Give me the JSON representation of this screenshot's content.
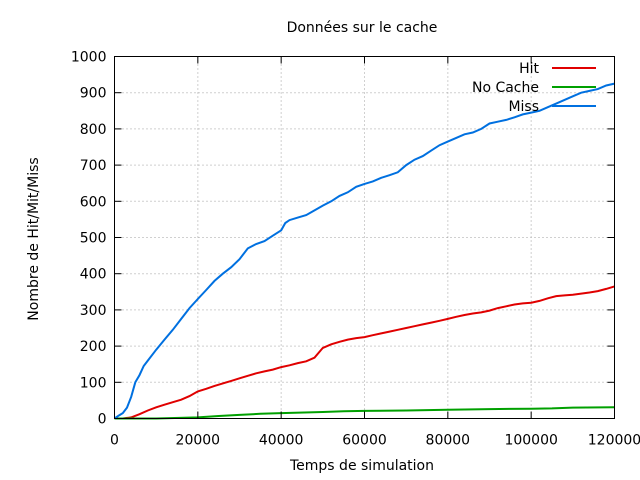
{
  "chart_data": {
    "type": "line",
    "title": "Données sur le cache",
    "xlabel": "Temps de simulation",
    "ylabel": "Nombre de Hit/Mit/Miss",
    "xlim": [
      0,
      120000
    ],
    "ylim": [
      0,
      1000
    ],
    "xticks": [
      0,
      20000,
      40000,
      60000,
      80000,
      100000,
      120000
    ],
    "yticks": [
      0,
      100,
      200,
      300,
      400,
      500,
      600,
      700,
      800,
      900,
      1000
    ],
    "grid": true,
    "legend_position": "top-right",
    "series": [
      {
        "name": "Hit",
        "color": "#e00000",
        "x": [
          0,
          2000,
          4000,
          6000,
          8000,
          10000,
          12000,
          14000,
          16000,
          18000,
          20000,
          22000,
          24000,
          26000,
          28000,
          30000,
          32000,
          34000,
          36000,
          38000,
          40000,
          42000,
          44000,
          46000,
          48000,
          50000,
          52000,
          54000,
          56000,
          58000,
          60000,
          62000,
          64000,
          66000,
          68000,
          70000,
          72000,
          74000,
          76000,
          78000,
          80000,
          82000,
          84000,
          86000,
          88000,
          90000,
          92000,
          94000,
          96000,
          98000,
          100000,
          102000,
          104000,
          106000,
          108000,
          110000,
          112000,
          114000,
          116000,
          118000,
          120000
        ],
        "y": [
          0,
          0,
          3,
          12,
          22,
          31,
          38,
          45,
          52,
          62,
          75,
          82,
          90,
          97,
          104,
          111,
          118,
          125,
          130,
          135,
          142,
          147,
          153,
          158,
          168,
          195,
          205,
          212,
          218,
          222,
          225,
          230,
          235,
          240,
          245,
          250,
          255,
          260,
          265,
          270,
          275,
          281,
          286,
          290,
          293,
          298,
          305,
          310,
          315,
          318,
          320,
          325,
          332,
          338,
          340,
          342,
          345,
          348,
          352,
          358,
          365
        ]
      },
      {
        "name": "No Cache",
        "color": "#00a000",
        "x": [
          0,
          10000,
          20000,
          25000,
          30000,
          35000,
          40000,
          50000,
          55000,
          60000,
          70000,
          80000,
          90000,
          100000,
          105000,
          110000,
          120000
        ],
        "y": [
          0,
          0,
          3,
          7,
          10,
          13,
          15,
          18,
          20,
          21,
          22,
          24,
          26,
          27,
          28,
          30,
          31
        ]
      },
      {
        "name": "Miss",
        "color": "#0070e0",
        "x": [
          0,
          1000,
          2000,
          3000,
          4000,
          5000,
          6000,
          7000,
          8000,
          10000,
          12000,
          14000,
          16000,
          18000,
          20000,
          22000,
          24000,
          26000,
          28000,
          30000,
          32000,
          34000,
          36000,
          38000,
          40000,
          41000,
          42000,
          44000,
          46000,
          48000,
          50000,
          52000,
          54000,
          56000,
          58000,
          60000,
          62000,
          64000,
          66000,
          68000,
          70000,
          72000,
          74000,
          76000,
          78000,
          80000,
          82000,
          84000,
          86000,
          88000,
          90000,
          92000,
          94000,
          96000,
          98000,
          100000,
          102000,
          104000,
          106000,
          108000,
          110000,
          112000,
          114000,
          116000,
          118000,
          120000
        ],
        "y": [
          0,
          8,
          15,
          30,
          60,
          100,
          120,
          145,
          160,
          190,
          218,
          245,
          275,
          305,
          330,
          355,
          380,
          400,
          418,
          440,
          470,
          482,
          490,
          505,
          520,
          540,
          548,
          555,
          562,
          575,
          588,
          600,
          615,
          625,
          640,
          648,
          655,
          665,
          672,
          680,
          700,
          715,
          725,
          740,
          755,
          765,
          775,
          785,
          790,
          800,
          815,
          820,
          825,
          832,
          840,
          845,
          850,
          860,
          870,
          880,
          890,
          900,
          905,
          910,
          920,
          925
        ]
      }
    ]
  }
}
